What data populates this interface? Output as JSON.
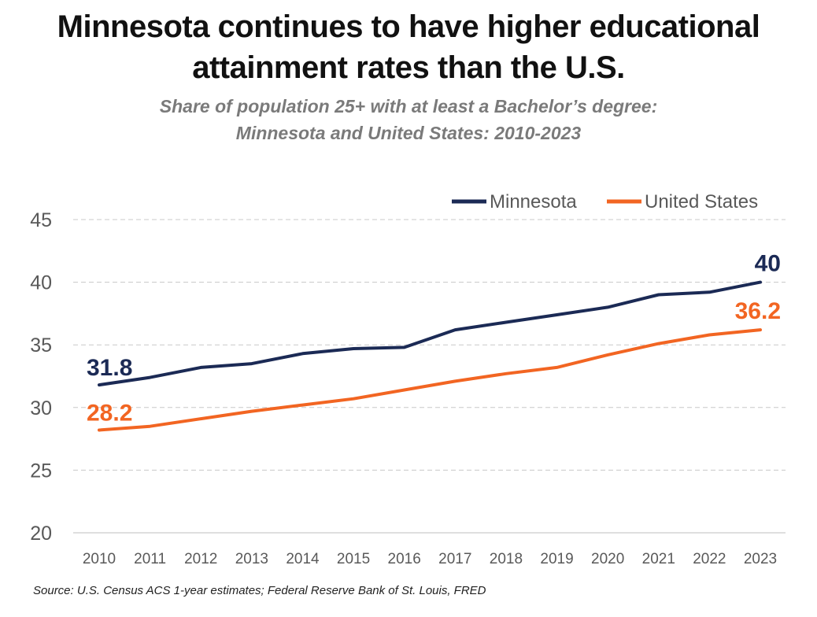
{
  "title_line1": "Minnesota continues to have higher educational",
  "title_line2": "attainment rates than the U.S.",
  "subtitle_line1": "Share of population 25+ with at least a Bachelor’s degree:",
  "subtitle_line2": "Minnesota and United States: 2010-2023",
  "source": "Source: U.S. Census ACS 1-year estimates; Federal Reserve Bank of St. Louis, FRED",
  "colors": {
    "minnesota": "#1b2a55",
    "us": "#f26522",
    "grid": "#c8c8c8"
  },
  "chart_data": {
    "type": "line",
    "title": "Minnesota continues to have higher educational attainment rates than the U.S.",
    "subtitle": "Share of population 25+ with at least a Bachelor’s degree: Minnesota and United States: 2010-2023",
    "x": [
      "2010",
      "2011",
      "2012",
      "2013",
      "2014",
      "2015",
      "2016",
      "2017",
      "2018",
      "2019",
      "2020",
      "2021",
      "2022",
      "2023"
    ],
    "yticks": [
      "20",
      "25",
      "30",
      "35",
      "40",
      "45"
    ],
    "ylim": [
      20,
      45
    ],
    "grid": "horizontal-dashed",
    "legend_position": "top-right",
    "series": [
      {
        "name": "Minnesota",
        "color": "#1b2a55",
        "values": [
          31.8,
          32.4,
          33.2,
          33.5,
          34.3,
          34.7,
          34.8,
          36.2,
          36.8,
          37.4,
          38.0,
          39.0,
          39.2,
          40.0
        ],
        "start_label": "31.8",
        "end_label": "40"
      },
      {
        "name": "United States",
        "color": "#f26522",
        "values": [
          28.2,
          28.5,
          29.1,
          29.7,
          30.2,
          30.7,
          31.4,
          32.1,
          32.7,
          33.2,
          34.2,
          35.1,
          35.8,
          36.2
        ],
        "start_label": "28.2",
        "end_label": "36.2"
      }
    ]
  }
}
